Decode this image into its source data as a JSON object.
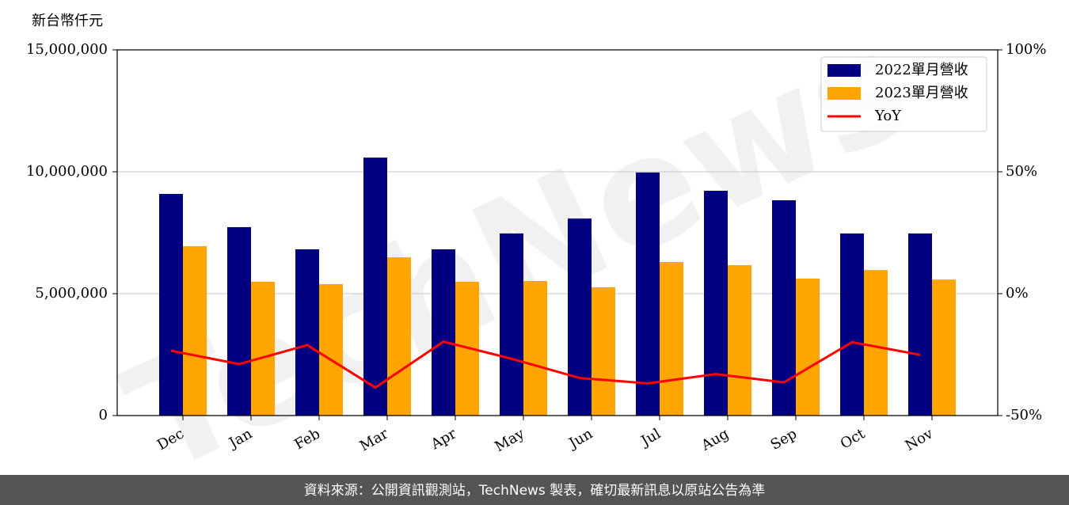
{
  "chart_data": {
    "type": "bar",
    "ylabel": "新台幣仟元",
    "watermark": "TechNews",
    "source": "資料來源：公開資訊觀測站，TechNews 製表，確切最新訊息以原站公告為準",
    "categories": [
      "Dec",
      "Jan",
      "Feb",
      "Mar",
      "Apr",
      "May",
      "Jun",
      "Jul",
      "Aug",
      "Sep",
      "Oct",
      "Nov"
    ],
    "series": [
      {
        "name": "2022單月營收",
        "color": "#000080",
        "values": [
          9090000,
          7730000,
          6820000,
          10580000,
          6820000,
          7470000,
          8080000,
          9970000,
          9220000,
          8830000,
          7470000,
          7470000
        ]
      },
      {
        "name": "2023單月營收",
        "color": "#ffa500",
        "values": [
          6950000,
          5490000,
          5390000,
          6490000,
          5490000,
          5520000,
          5260000,
          6300000,
          6170000,
          5620000,
          5970000,
          5580000
        ]
      },
      {
        "name": "YoY",
        "color": "#ff0000",
        "type": "line",
        "axis": "y2",
        "values": [
          -23.4,
          -28.9,
          -21.1,
          -38.5,
          -19.7,
          -26.7,
          -34.6,
          -36.8,
          -33.0,
          -36.4,
          -19.9,
          -25.1
        ]
      }
    ],
    "ylim": [
      0,
      15000000
    ],
    "yticks": [
      {
        "value": 0,
        "label": "0"
      },
      {
        "value": 5000000,
        "label": "5,000,000"
      },
      {
        "value": 10000000,
        "label": "10,000,000"
      },
      {
        "value": 15000000,
        "label": "15,000,000"
      }
    ],
    "y2lim": [
      -50,
      100
    ],
    "y2ticks": [
      {
        "value": -50,
        "label": "-50%"
      },
      {
        "value": 0,
        "label": "0%"
      },
      {
        "value": 50,
        "label": "50%"
      },
      {
        "value": 100,
        "label": "100%"
      }
    ],
    "grid": true,
    "legend": "upper right"
  }
}
